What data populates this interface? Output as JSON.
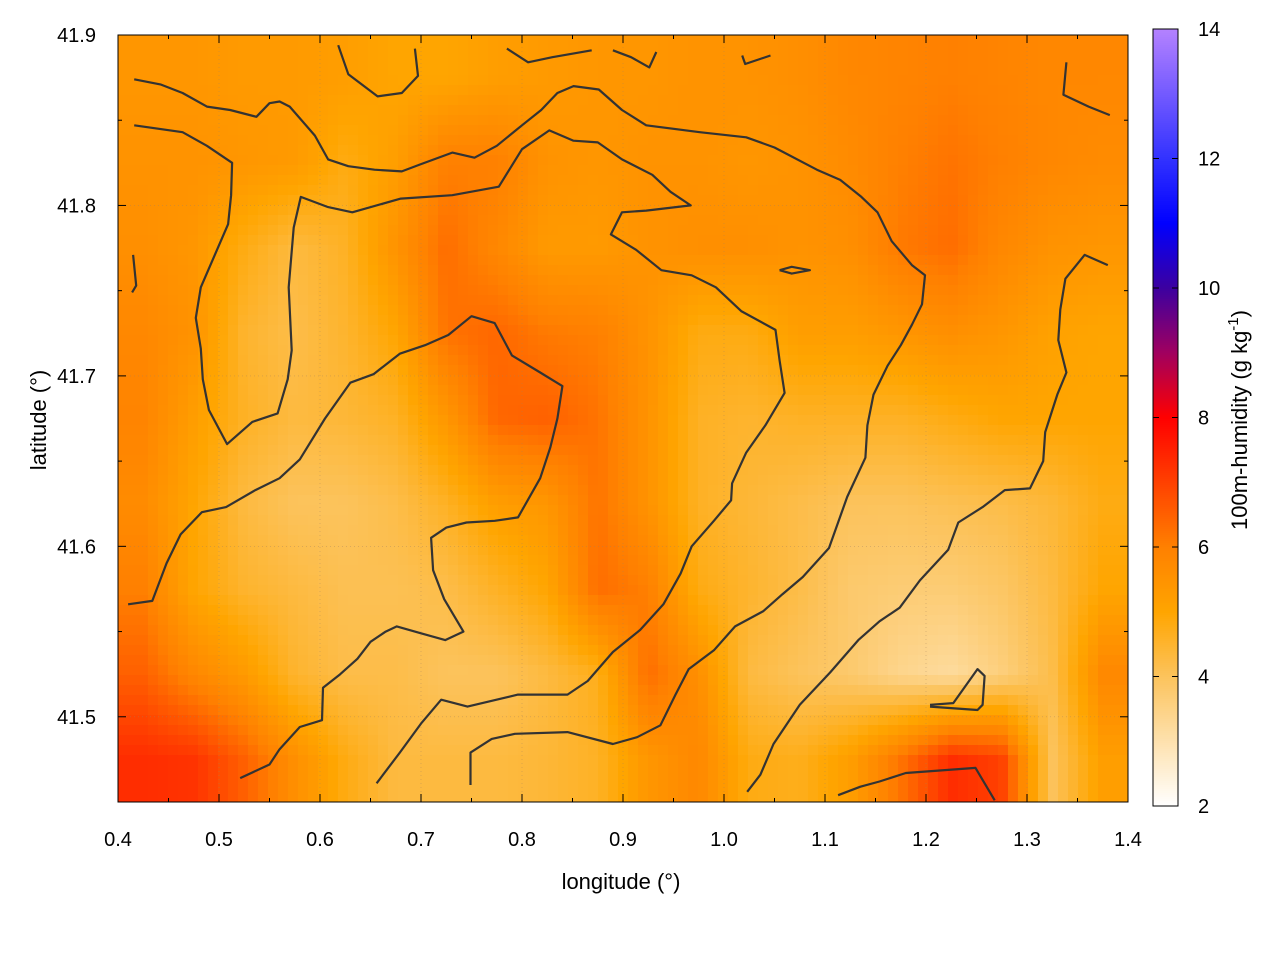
{
  "chart_data": {
    "type": "heatmap",
    "xlabel": "longitude (°)",
    "ylabel": "latitude (°)",
    "colorbar_label": {
      "text": "100m-humidity (g kg",
      "sup": "-1",
      "close": ")"
    },
    "xlim": [
      0.4,
      1.4
    ],
    "ylim": [
      41.45,
      41.9
    ],
    "xticks": [
      "0.4",
      "0.5",
      "0.6",
      "0.7",
      "0.8",
      "0.9",
      "1.0",
      "1.1",
      "1.2",
      "1.3",
      "1.4"
    ],
    "yticks": [
      "41.5",
      "41.6",
      "41.7",
      "41.8",
      "41.9"
    ],
    "cbrange": [
      2,
      14
    ],
    "cbticks": [
      "2",
      "4",
      "6",
      "8",
      "10",
      "12",
      "14"
    ],
    "grid": true,
    "palette": [
      [
        2,
        "#ffffff"
      ],
      [
        4,
        "#fcc35c"
      ],
      [
        5,
        "#ffa500"
      ],
      [
        6,
        "#ff8000"
      ],
      [
        7,
        "#ff4000"
      ],
      [
        8,
        "#ff0000"
      ],
      [
        9,
        "#a0005f"
      ],
      [
        10,
        "#3c00a0"
      ],
      [
        11,
        "#0000ff"
      ],
      [
        12,
        "#3232ff"
      ],
      [
        14,
        "#b482ff"
      ]
    ],
    "contour_color": "#333333",
    "grid_lon": [
      0.425,
      0.475,
      0.525,
      0.575,
      0.625,
      0.675,
      0.725,
      0.775,
      0.825,
      0.875,
      0.925,
      0.975,
      1.025,
      1.075,
      1.125,
      1.175,
      1.225,
      1.275,
      1.325,
      1.375
    ],
    "grid_lat": [
      41.875,
      41.825,
      41.775,
      41.725,
      41.675,
      41.625,
      41.575,
      41.525,
      41.475
    ],
    "values": [
      [
        5.4,
        5.4,
        5.3,
        5.3,
        5.2,
        5.0,
        5.0,
        5.2,
        5.3,
        5.4,
        5.4,
        5.5,
        5.5,
        5.6,
        5.8,
        5.9,
        6.0,
        5.9,
        5.8,
        5.8
      ],
      [
        5.5,
        5.5,
        5.4,
        5.3,
        4.8,
        5.2,
        6.0,
        6.0,
        5.5,
        5.4,
        5.5,
        5.5,
        5.4,
        5.5,
        5.7,
        6.0,
        6.2,
        6.0,
        5.8,
        5.7
      ],
      [
        5.6,
        5.4,
        4.8,
        4.3,
        4.6,
        5.5,
        6.3,
        5.8,
        5.3,
        5.3,
        5.5,
        5.6,
        5.6,
        5.5,
        5.6,
        6.1,
        6.3,
        5.8,
        5.5,
        5.4
      ],
      [
        5.8,
        5.5,
        4.5,
        4.2,
        4.5,
        5.0,
        6.2,
        6.4,
        6.1,
        6.0,
        5.5,
        4.8,
        4.8,
        5.2,
        5.2,
        5.4,
        5.6,
        5.4,
        5.1,
        5.0
      ],
      [
        5.9,
        5.2,
        4.6,
        4.3,
        4.4,
        4.6,
        5.4,
        6.4,
        6.5,
        6.2,
        5.5,
        4.6,
        4.5,
        4.6,
        4.6,
        4.6,
        4.8,
        5.0,
        5.0,
        5.0
      ],
      [
        5.7,
        5.0,
        4.3,
        4.0,
        4.0,
        4.2,
        4.6,
        5.2,
        5.4,
        6.2,
        5.5,
        4.6,
        4.4,
        4.2,
        4.0,
        4.0,
        4.1,
        4.2,
        4.4,
        4.8
      ],
      [
        6.0,
        5.0,
        4.5,
        4.3,
        4.1,
        4.1,
        4.2,
        4.6,
        5.0,
        6.3,
        6.0,
        4.8,
        4.5,
        4.2,
        3.8,
        3.7,
        3.7,
        3.9,
        4.3,
        5.0
      ],
      [
        6.5,
        5.8,
        5.3,
        4.5,
        4.2,
        4.2,
        4.0,
        4.0,
        4.3,
        4.7,
        6.3,
        5.6,
        4.3,
        4.0,
        3.8,
        3.4,
        3.2,
        3.6,
        4.2,
        5.8
      ],
      [
        7.3,
        7.2,
        6.5,
        5.6,
        4.8,
        4.3,
        4.3,
        4.3,
        4.4,
        4.6,
        5.4,
        5.8,
        4.8,
        4.7,
        5.2,
        6.2,
        7.3,
        7.0,
        4.0,
        5.2
      ]
    ],
    "contours": [
      [
        [
          0.416,
          41.874
        ],
        [
          0.442,
          41.871
        ],
        [
          0.464,
          41.866
        ],
        [
          0.488,
          41.858
        ],
        [
          0.511,
          41.856
        ],
        [
          0.537,
          41.852
        ],
        [
          0.55,
          41.86
        ],
        [
          0.56,
          41.861
        ],
        [
          0.57,
          41.858
        ],
        [
          0.595,
          41.841
        ],
        [
          0.608,
          41.827
        ],
        [
          0.628,
          41.823
        ],
        [
          0.654,
          41.821
        ],
        [
          0.681,
          41.82
        ],
        [
          0.699,
          41.824
        ],
        [
          0.731,
          41.831
        ],
        [
          0.753,
          41.828
        ],
        [
          0.775,
          41.835
        ],
        [
          0.8,
          41.847
        ],
        [
          0.819,
          41.856
        ],
        [
          0.835,
          41.866
        ],
        [
          0.851,
          41.87
        ],
        [
          0.876,
          41.868
        ],
        [
          0.899,
          41.856
        ],
        [
          0.923,
          41.847
        ],
        [
          0.976,
          41.843
        ],
        [
          1.022,
          41.84
        ],
        [
          1.05,
          41.834
        ],
        [
          1.092,
          41.821
        ],
        [
          1.115,
          41.815
        ],
        [
          1.136,
          41.805
        ],
        [
          1.152,
          41.796
        ],
        [
          1.166,
          41.779
        ],
        [
          1.186,
          41.765
        ],
        [
          1.199,
          41.759
        ],
        [
          1.196,
          41.742
        ],
        [
          1.186,
          41.73
        ],
        [
          1.175,
          41.718
        ],
        [
          1.162,
          41.706
        ],
        [
          1.148,
          41.689
        ],
        [
          1.142,
          41.671
        ],
        [
          1.14,
          41.652
        ],
        [
          1.122,
          41.629
        ],
        [
          1.104,
          41.599
        ],
        [
          1.078,
          41.582
        ],
        [
          1.058,
          41.572
        ],
        [
          1.039,
          41.562
        ],
        [
          1.011,
          41.553
        ],
        [
          0.99,
          41.539
        ],
        [
          0.965,
          41.528
        ],
        [
          0.952,
          41.513
        ],
        [
          0.937,
          41.495
        ],
        [
          0.914,
          41.488
        ],
        [
          0.89,
          41.484
        ],
        [
          0.845,
          41.491
        ],
        [
          0.793,
          41.49
        ],
        [
          0.77,
          41.487
        ],
        [
          0.749,
          41.479
        ],
        [
          0.749,
          41.46
        ]
      ],
      [
        [
          0.416,
          41.847
        ],
        [
          0.464,
          41.843
        ],
        [
          0.488,
          41.835
        ],
        [
          0.513,
          41.825
        ],
        [
          0.512,
          41.806
        ],
        [
          0.509,
          41.789
        ],
        [
          0.482,
          41.752
        ],
        [
          0.477,
          41.734
        ],
        [
          0.482,
          41.716
        ],
        [
          0.484,
          41.698
        ],
        [
          0.49,
          41.68
        ],
        [
          0.508,
          41.66
        ],
        [
          0.533,
          41.673
        ],
        [
          0.558,
          41.678
        ],
        [
          0.568,
          41.698
        ],
        [
          0.572,
          41.715
        ],
        [
          0.569,
          41.752
        ],
        [
          0.574,
          41.787
        ],
        [
          0.581,
          41.805
        ],
        [
          0.608,
          41.799
        ],
        [
          0.632,
          41.796
        ],
        [
          0.68,
          41.804
        ],
        [
          0.731,
          41.806
        ],
        [
          0.777,
          41.811
        ],
        [
          0.8,
          41.833
        ],
        [
          0.827,
          41.844
        ],
        [
          0.851,
          41.838
        ],
        [
          0.875,
          41.837
        ],
        [
          0.899,
          41.827
        ],
        [
          0.929,
          41.818
        ],
        [
          0.947,
          41.808
        ],
        [
          0.967,
          41.8
        ],
        [
          0.923,
          41.797
        ],
        [
          0.899,
          41.796
        ],
        [
          0.888,
          41.783
        ],
        [
          0.913,
          41.774
        ],
        [
          0.938,
          41.762
        ],
        [
          0.968,
          41.759
        ],
        [
          0.992,
          41.752
        ],
        [
          1.017,
          41.738
        ],
        [
          1.051,
          41.727
        ],
        [
          1.055,
          41.709
        ],
        [
          1.06,
          41.69
        ],
        [
          1.041,
          41.671
        ],
        [
          1.022,
          41.655
        ],
        [
          1.008,
          41.637
        ],
        [
          1.007,
          41.627
        ],
        [
          0.99,
          41.615
        ],
        [
          0.968,
          41.6
        ],
        [
          0.957,
          41.584
        ],
        [
          0.94,
          41.566
        ],
        [
          0.917,
          41.551
        ],
        [
          0.89,
          41.538
        ],
        [
          0.865,
          41.521
        ],
        [
          0.845,
          41.513
        ],
        [
          0.796,
          41.513
        ],
        [
          0.746,
          41.506
        ],
        [
          0.72,
          41.51
        ],
        [
          0.7,
          41.496
        ],
        [
          0.679,
          41.479
        ],
        [
          0.656,
          41.461
        ]
      ],
      [
        [
          0.41,
          41.566
        ],
        [
          0.434,
          41.568
        ],
        [
          0.448,
          41.59
        ],
        [
          0.462,
          41.607
        ],
        [
          0.483,
          41.62
        ],
        [
          0.507,
          41.623
        ],
        [
          0.536,
          41.633
        ],
        [
          0.56,
          41.64
        ],
        [
          0.58,
          41.651
        ],
        [
          0.605,
          41.675
        ],
        [
          0.63,
          41.696
        ],
        [
          0.653,
          41.701
        ],
        [
          0.679,
          41.713
        ],
        [
          0.704,
          41.718
        ],
        [
          0.727,
          41.724
        ],
        [
          0.75,
          41.735
        ],
        [
          0.773,
          41.731
        ],
        [
          0.79,
          41.712
        ],
        [
          0.818,
          41.702
        ],
        [
          0.84,
          41.694
        ],
        [
          0.835,
          41.675
        ],
        [
          0.828,
          41.658
        ],
        [
          0.818,
          41.64
        ],
        [
          0.796,
          41.617
        ],
        [
          0.773,
          41.615
        ],
        [
          0.745,
          41.614
        ],
        [
          0.725,
          41.611
        ],
        [
          0.71,
          41.605
        ],
        [
          0.712,
          41.586
        ],
        [
          0.723,
          41.569
        ],
        [
          0.742,
          41.55
        ],
        [
          0.724,
          41.545
        ],
        [
          0.7,
          41.549
        ],
        [
          0.676,
          41.553
        ],
        [
          0.665,
          41.55
        ],
        [
          0.65,
          41.544
        ],
        [
          0.637,
          41.534
        ],
        [
          0.62,
          41.525
        ],
        [
          0.603,
          41.517
        ],
        [
          0.602,
          41.498
        ],
        [
          0.58,
          41.494
        ],
        [
          0.56,
          41.481
        ],
        [
          0.55,
          41.472
        ],
        [
          0.521,
          41.464
        ]
      ],
      [
        [
          1.023,
          41.456
        ],
        [
          1.036,
          41.466
        ],
        [
          1.049,
          41.484
        ],
        [
          1.075,
          41.507
        ],
        [
          1.105,
          41.526
        ],
        [
          1.133,
          41.545
        ],
        [
          1.154,
          41.556
        ],
        [
          1.174,
          41.564
        ],
        [
          1.194,
          41.58
        ],
        [
          1.222,
          41.598
        ],
        [
          1.232,
          41.614
        ],
        [
          1.256,
          41.623
        ],
        [
          1.278,
          41.633
        ],
        [
          1.303,
          41.634
        ],
        [
          1.316,
          41.65
        ],
        [
          1.318,
          41.667
        ],
        [
          1.33,
          41.689
        ],
        [
          1.339,
          41.702
        ],
        [
          1.331,
          41.721
        ],
        [
          1.333,
          41.739
        ],
        [
          1.338,
          41.757
        ],
        [
          1.357,
          41.771
        ],
        [
          1.38,
          41.765
        ]
      ],
      [
        [
          0.618,
          41.894
        ],
        [
          0.628,
          41.877
        ],
        [
          0.657,
          41.864
        ],
        [
          0.681,
          41.866
        ],
        [
          0.697,
          41.876
        ],
        [
          0.694,
          41.892
        ]
      ],
      [
        [
          0.785,
          41.892
        ],
        [
          0.806,
          41.884
        ],
        [
          0.83,
          41.887
        ],
        [
          0.869,
          41.891
        ]
      ],
      [
        [
          0.89,
          41.891
        ],
        [
          0.908,
          41.887
        ],
        [
          0.926,
          41.881
        ],
        [
          0.933,
          41.89
        ]
      ],
      [
        [
          1.018,
          41.888
        ],
        [
          1.021,
          41.883
        ],
        [
          1.046,
          41.888
        ]
      ],
      [
        [
          1.339,
          41.884
        ],
        [
          1.336,
          41.865
        ],
        [
          1.361,
          41.858
        ],
        [
          1.382,
          41.853
        ]
      ],
      [
        [
          1.055,
          41.762
        ],
        [
          1.067,
          41.764
        ],
        [
          1.085,
          41.762
        ],
        [
          1.067,
          41.76
        ],
        [
          1.055,
          41.762
        ]
      ],
      [
        [
          0.415,
          41.771
        ],
        [
          0.418,
          41.753
        ],
        [
          0.414,
          41.749
        ]
      ],
      [
        [
          1.204,
          41.507
        ],
        [
          1.227,
          41.508
        ],
        [
          1.251,
          41.528
        ],
        [
          1.258,
          41.524
        ],
        [
          1.256,
          41.507
        ],
        [
          1.251,
          41.504
        ],
        [
          1.204,
          41.506
        ]
      ],
      [
        [
          1.113,
          41.454
        ],
        [
          1.135,
          41.459
        ],
        [
          1.154,
          41.462
        ],
        [
          1.18,
          41.467
        ],
        [
          1.249,
          41.47
        ],
        [
          1.268,
          41.451
        ]
      ]
    ]
  }
}
